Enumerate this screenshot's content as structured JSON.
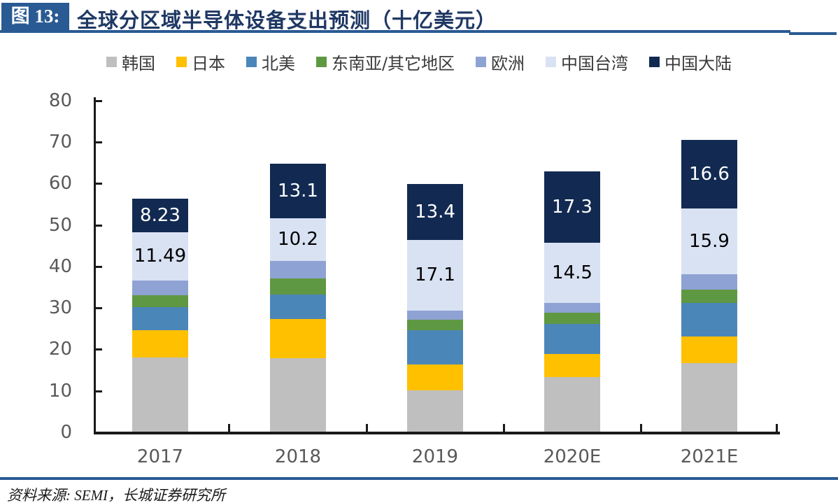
{
  "header": {
    "figure_label": "图 13:",
    "title": "全球分区域半导体设备支出预测（十亿美元）"
  },
  "chart_data": {
    "type": "bar",
    "stacked": true,
    "title": "全球分区域半导体设备支出预测（十亿美元）",
    "unit": "十亿美元",
    "categories": [
      "2017",
      "2018",
      "2019",
      "2020E",
      "2021E"
    ],
    "series": [
      {
        "name": "韩国",
        "color": "#BFBFBF",
        "values": [
          17.95,
          17.71,
          9.97,
          13.2,
          16.5
        ]
      },
      {
        "name": "日本",
        "color": "#FFC000",
        "values": [
          6.49,
          9.47,
          6.27,
          5.5,
          6.5
        ]
      },
      {
        "name": "北美",
        "color": "#4B86B9",
        "values": [
          5.59,
          5.83,
          8.15,
          7.3,
          8.0
        ]
      },
      {
        "name": "东南亚/其它地区",
        "color": "#5F9842",
        "values": [
          2.81,
          3.99,
          2.52,
          2.7,
          3.3
        ]
      },
      {
        "name": "欧洲",
        "color": "#8FA2D4",
        "values": [
          3.67,
          4.22,
          2.28,
          2.3,
          3.6
        ]
      },
      {
        "name": "中国台湾",
        "color": "#D9E2F3",
        "values": [
          11.49,
          10.2,
          17.1,
          14.5,
          15.9
        ],
        "value_labels": [
          "11.49",
          "10.2",
          "17.1",
          "14.5",
          "15.9"
        ],
        "label_color": "#000000"
      },
      {
        "name": "中国大陆",
        "color": "#122A52",
        "values": [
          8.23,
          13.1,
          13.4,
          17.3,
          16.6
        ],
        "value_labels": [
          "8.23",
          "13.1",
          "13.4",
          "17.3",
          "16.6"
        ],
        "label_color": "#FFFFFF"
      }
    ],
    "ylim": [
      0,
      80
    ],
    "ytick_step": 10,
    "ytick_labels": [
      "0",
      "10",
      "20",
      "30",
      "40",
      "50",
      "60",
      "70",
      "80"
    ],
    "grid": false,
    "legend_position": "top"
  },
  "source": {
    "text": "资料来源: SEMI，长城证券研究所"
  }
}
